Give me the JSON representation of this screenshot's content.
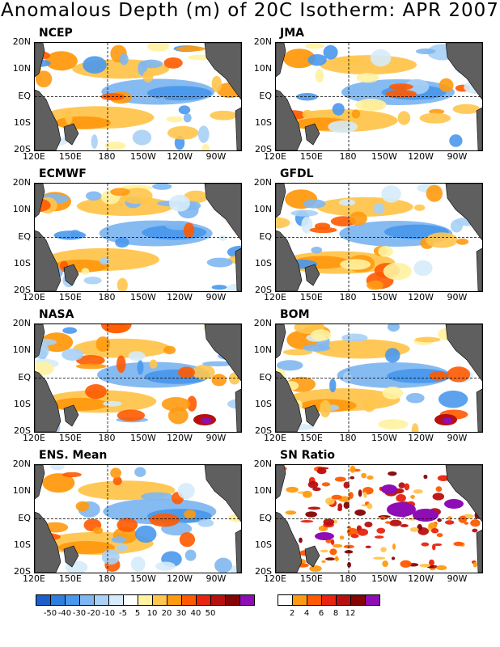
{
  "title": "Anomalous Depth (m) of 20C Isotherm: APR 2007",
  "panels": [
    {
      "name": "NCEP"
    },
    {
      "name": "JMA"
    },
    {
      "name": "ECMWF"
    },
    {
      "name": "GFDL"
    },
    {
      "name": "NASA"
    },
    {
      "name": "BOM"
    },
    {
      "name": "ENS. Mean"
    },
    {
      "name": "SN Ratio"
    }
  ],
  "lat_labels": [
    "20N",
    "10N",
    "EQ",
    "10S",
    "20S"
  ],
  "lon_labels": [
    "120E",
    "150E",
    "180",
    "150W",
    "120W",
    "90W"
  ],
  "anomaly_scale": {
    "labels": [
      "-50",
      "-40",
      "-30",
      "-20",
      "-10",
      "-5",
      "5",
      "10",
      "20",
      "30",
      "40",
      "50"
    ],
    "colors": [
      "#1c5fc9",
      "#2e7ee0",
      "#4a98ec",
      "#7fb7f1",
      "#a9d0f5",
      "#d6ebfa",
      "#ffffff",
      "#fff2a0",
      "#ffc54d",
      "#ff9a10",
      "#ff5a00",
      "#e8240e",
      "#b80f0f",
      "#850404",
      "#8e0db5"
    ]
  },
  "sn_scale": {
    "labels": [
      "2",
      "4",
      "6",
      "8",
      "12"
    ],
    "colors": [
      "#ffffff",
      "#ff9a10",
      "#ff5a00",
      "#e8240e",
      "#b80f0f",
      "#850404",
      "#8e0db5"
    ]
  }
}
